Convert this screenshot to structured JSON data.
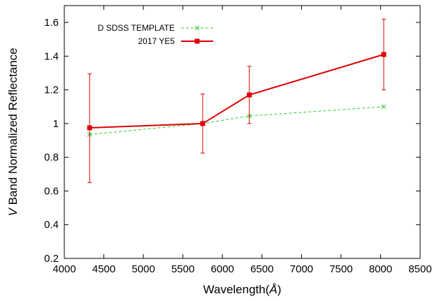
{
  "chart_data": {
    "type": "line",
    "title": "",
    "xlabel_text": "Wavelength(",
    "xlabel_unit": "Å",
    "xlabel_close": ")",
    "ylabel_italic": "V",
    "ylabel_rest": " Band Normalized Reflectance",
    "xlim": [
      4000,
      8500
    ],
    "ylim": [
      0.2,
      1.7
    ],
    "xticks": [
      "4000",
      "4500",
      "5000",
      "5500",
      "6000",
      "6500",
      "7000",
      "7500",
      "8000",
      "8500"
    ],
    "yticks": [
      "0.2",
      "0.4",
      "0.6",
      "0.8",
      "1",
      "1.2",
      "1.4",
      "1.6"
    ],
    "legend_position": "top-left",
    "series": [
      {
        "name": "D SDSS TEMPLATE",
        "color": "#2ecc2e",
        "style": "dashed",
        "marker": "x",
        "x": [
          4320,
          5750,
          6340,
          8040
        ],
        "y": [
          0.935,
          1.0,
          1.045,
          1.1
        ]
      },
      {
        "name": "2017 YE5",
        "color": "#e00000",
        "style": "solid",
        "marker": "square",
        "x": [
          4320,
          5750,
          6340,
          8040
        ],
        "y": [
          0.975,
          1.0,
          1.17,
          1.41
        ],
        "yerr_low": [
          0.65,
          0.825,
          1.0,
          1.2
        ],
        "yerr_high": [
          1.295,
          1.175,
          1.34,
          1.62
        ]
      }
    ]
  }
}
